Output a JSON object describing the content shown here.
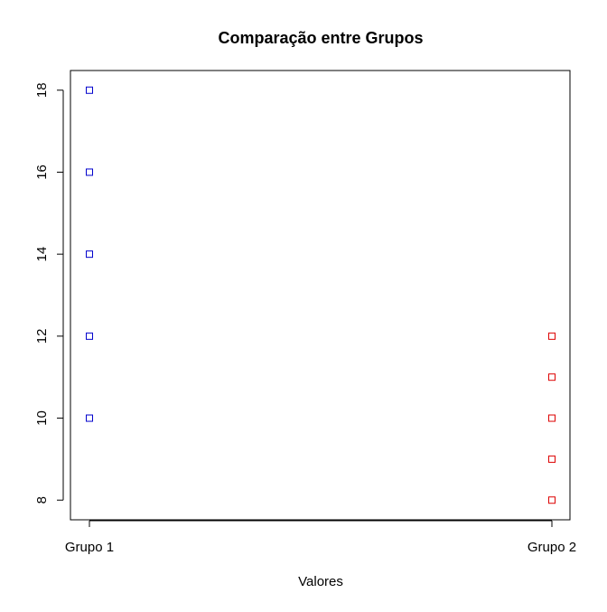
{
  "chart_data": {
    "type": "scatter",
    "title": "Comparação entre Grupos",
    "xlabel": "Valores",
    "ylabel": "",
    "categories": [
      "Grupo 1",
      "Grupo 2"
    ],
    "series": [
      {
        "category": "Grupo 1",
        "color": "#0000cc",
        "values": [
          10,
          12,
          14,
          16,
          18
        ]
      },
      {
        "category": "Grupo 2",
        "color": "#dd0000",
        "values": [
          8,
          9,
          10,
          11,
          12
        ]
      }
    ],
    "yticks": [
      8,
      10,
      12,
      14,
      16,
      18
    ],
    "ylim": [
      7.52,
      18.48
    ],
    "marker": "open-square",
    "grid": false
  }
}
